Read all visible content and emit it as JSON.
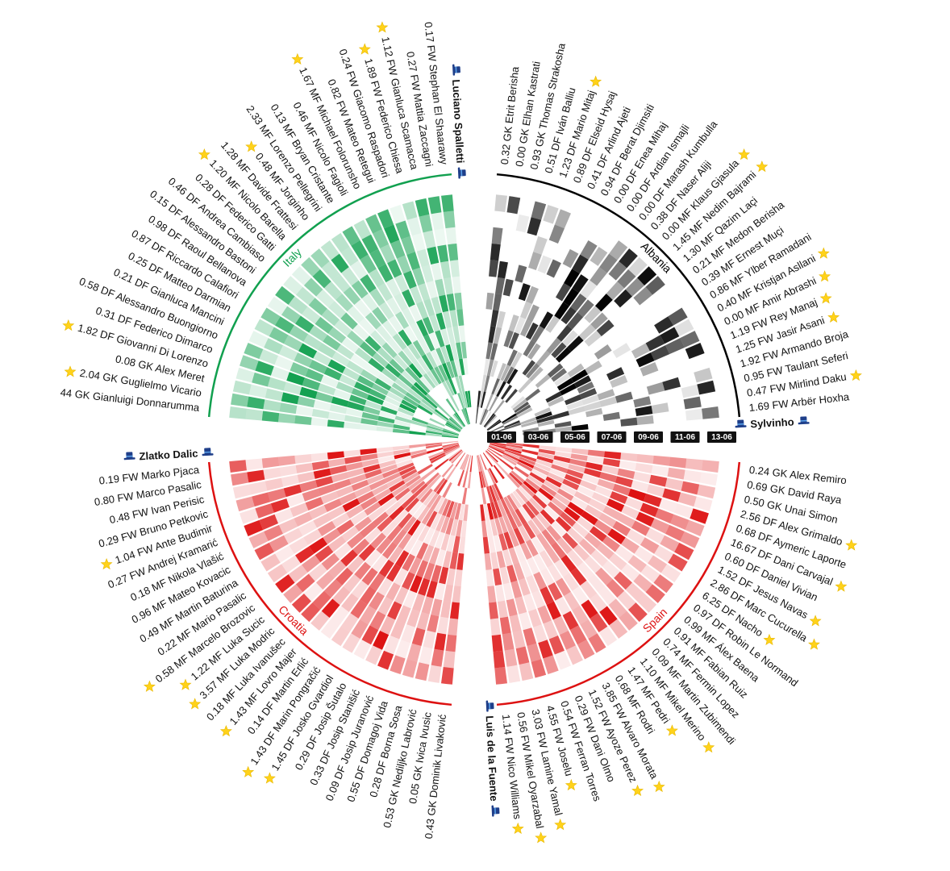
{
  "chart_data": {
    "type": "heatmap",
    "radial": true,
    "dates": [
      "01-06",
      "03-06",
      "05-06",
      "07-06",
      "09-06",
      "11-06",
      "13-06"
    ],
    "teams": [
      {
        "name": "Albania",
        "coach": "Sylvinho",
        "color": "#000000",
        "players": [
          {
            "label": "0.32 GK Etrit Berisha",
            "star": false
          },
          {
            "label": "0.00 GK Elhan Kastrati",
            "star": false
          },
          {
            "label": "0.93 GK Thomas Strakosha",
            "star": false
          },
          {
            "label": "0.51 DF Iván Balliu",
            "star": false
          },
          {
            "label": "1.23 DF Mario Mitaj",
            "star": true
          },
          {
            "label": "0.89 DF Elseid Hysaj",
            "star": false
          },
          {
            "label": "0.41 DF Arlind Ajeti",
            "star": false
          },
          {
            "label": "0.94 DF Berat Djimsiti",
            "star": false
          },
          {
            "label": "0.00 DF Enea Mihaj",
            "star": false
          },
          {
            "label": "0.00 DF Ardian Ismajli",
            "star": false
          },
          {
            "label": "0.00 DF Marash Kumbulla",
            "star": false
          },
          {
            "label": "0.38 DF Naser Aliji",
            "star": false
          },
          {
            "label": "0.00 MF Klaus Gjasula",
            "star": true
          },
          {
            "label": "1.45 MF Nedim Bajrami",
            "star": true
          },
          {
            "label": "1.30 MF Qazim Laçi",
            "star": false
          },
          {
            "label": "0.21 MF Medon Berisha",
            "star": false
          },
          {
            "label": "0.39 MF Ernest Muçi",
            "star": false
          },
          {
            "label": "0.86 MF Ylber Ramadani",
            "star": false
          },
          {
            "label": "0.40 MF Kristjan Asllani",
            "star": true
          },
          {
            "label": "0.00 MF Amir Abrashi",
            "star": true
          },
          {
            "label": "1.19 FW Rey Manaj",
            "star": true
          },
          {
            "label": "1.25 FW Jasir Asani",
            "star": true
          },
          {
            "label": "1.92 FW Armando Broja",
            "star": false
          },
          {
            "label": "0.95 FW Taulant Seferi",
            "star": false
          },
          {
            "label": "0.47 FW Mirlind Daku",
            "star": true
          },
          {
            "label": "1.69 FW Arbër Hoxha",
            "star": false
          }
        ]
      },
      {
        "name": "Spain",
        "coach": "Luis de la Fuente",
        "color": "#dd1111",
        "players": [
          {
            "label": "0.24 GK Alex Remiro",
            "star": false
          },
          {
            "label": "0.69 GK David Raya",
            "star": false
          },
          {
            "label": "0.50 GK Unai Simon",
            "star": false
          },
          {
            "label": "2.56 DF Alex Grimaldo",
            "star": true
          },
          {
            "label": "0.68 DF Aymeric Laporte",
            "star": false
          },
          {
            "label": "16.67 DF Dani Carvajal",
            "star": true
          },
          {
            "label": "0.60 DF Daniel Vivian",
            "star": false
          },
          {
            "label": "1.52 DF Jesus Navas",
            "star": true
          },
          {
            "label": "2.86 DF Marc Cucurella",
            "star": true
          },
          {
            "label": "6.25 DF Nacho",
            "star": true
          },
          {
            "label": "0.97 DF Robin Le Normand",
            "star": false
          },
          {
            "label": "0.99 MF Álex Baena",
            "star": false
          },
          {
            "label": "0.91 MF Fabian Ruiz",
            "star": false
          },
          {
            "label": "0.74 MF Fermin Lopez",
            "star": false
          },
          {
            "label": "0.09 MF Martin Zubimendi",
            "star": false
          },
          {
            "label": "1.10 MF Mikel Merino",
            "star": true
          },
          {
            "label": "1.47 MF Pedri",
            "star": true
          },
          {
            "label": "0.68 MF Rodri",
            "star": false
          },
          {
            "label": "3.85 FW Alvaro Morata",
            "star": true
          },
          {
            "label": "1.52 FW Ayoze Perez",
            "star": true
          },
          {
            "label": "0.29 FW Dani Olmo",
            "star": false
          },
          {
            "label": "0.54 FW Ferran Torres",
            "star": false
          },
          {
            "label": "4.55 FW Joselu",
            "star": true
          },
          {
            "label": "3.03 FW Lamine Yamal",
            "star": true
          },
          {
            "label": "0.56 FW Mikel Oyarzabal",
            "star": true
          },
          {
            "label": "1.14 FW Nico Williams",
            "star": true
          }
        ]
      },
      {
        "name": "Croatia",
        "coach": "Zlatko Dalic",
        "color": "#dd1111",
        "players": [
          {
            "label": "0.43 GK Dominik Livaković",
            "star": false
          },
          {
            "label": "0.05 GK Ivica Ivusic",
            "star": false
          },
          {
            "label": "0.53 GK Nediljko Labrović",
            "star": false
          },
          {
            "label": "0.28 DF Borna Sosa",
            "star": false
          },
          {
            "label": "0.55 DF Domagoj Vida",
            "star": false
          },
          {
            "label": "0.09 DF Josip Juranović",
            "star": false
          },
          {
            "label": "0.33 DF Josip Stanišić",
            "star": false
          },
          {
            "label": "0.29 DF Josip Šutalo",
            "star": false
          },
          {
            "label": "1.45 DF Josko Gvardiol",
            "star": true
          },
          {
            "label": "1.43 DF Marin Pongračić",
            "star": true
          },
          {
            "label": "0.14 DF Martin Erlić",
            "star": false
          },
          {
            "label": "1.43 MF Lovro Majer",
            "star": true
          },
          {
            "label": "0.18 MF Luka Ivanušec",
            "star": false
          },
          {
            "label": "3.57 MF Luka Modric",
            "star": true
          },
          {
            "label": "1.22 MF Luka Sucic",
            "star": true
          },
          {
            "label": "0.58 MF Marcelo Brozovic",
            "star": true
          },
          {
            "label": "0.22 MF Mario Pasalic",
            "star": false
          },
          {
            "label": "0.49 MF Martin Baturina",
            "star": false
          },
          {
            "label": "0.96 MF Mateo Kovacic",
            "star": false
          },
          {
            "label": "0.18 MF Nikola Vlašić",
            "star": false
          },
          {
            "label": "0.27 FW Andrej Kramarić",
            "star": false
          },
          {
            "label": "1.04 FW Ante Budimir",
            "star": true
          },
          {
            "label": "0.29 FW Bruno Petkovic",
            "star": false
          },
          {
            "label": "0.48 FW Ivan Perisic",
            "star": false
          },
          {
            "label": "0.80 FW Marco Pasalic",
            "star": false
          },
          {
            "label": "0.19 FW Marko Pjaca",
            "star": false
          }
        ]
      },
      {
        "name": "Italy",
        "coach": "Luciano Spalletti",
        "color": "#11a04f",
        "players": [
          {
            "label": "44 GK Gianluigi Donnarumma",
            "star": false
          },
          {
            "label": "2.04 GK Guglielmo Vicario",
            "star": true
          },
          {
            "label": "0.08 GK Alex Meret",
            "star": false
          },
          {
            "label": "1.82 DF Giovanni Di Lorenzo",
            "star": true
          },
          {
            "label": "0.31 DF Federico Dimarco",
            "star": false
          },
          {
            "label": "0.58 DF Alessandro Buongiorno",
            "star": false
          },
          {
            "label": "0.21 DF Gianluca Mancini",
            "star": false
          },
          {
            "label": "0.25 DF Matteo Darmian",
            "star": false
          },
          {
            "label": "0.87 DF Riccardo Calafiori",
            "star": false
          },
          {
            "label": "0.98 DF Raoul Bellanova",
            "star": false
          },
          {
            "label": "0.15 DF Alessandro Bastoni",
            "star": false
          },
          {
            "label": "0.46 DF Andrea Cambiaso",
            "star": false
          },
          {
            "label": "0.28 DF Federico Gatti",
            "star": false
          },
          {
            "label": "1.20 MF Nicolo Barella",
            "star": true
          },
          {
            "label": "1.28 MF Davide Frattesi",
            "star": false
          },
          {
            "label": "0.48 MF Jorginho",
            "star": true
          },
          {
            "label": "2.33 MF Lorenzo Pellegrini",
            "star": false
          },
          {
            "label": "0.13 MF Bryan Cristante",
            "star": false
          },
          {
            "label": "0.46 MF Nicolo Fagioli",
            "star": false
          },
          {
            "label": "1.67 MF Michael Folorunsho",
            "star": true
          },
          {
            "label": "0.82 FW Mateo Retegui",
            "star": false
          },
          {
            "label": "0.24 FW Giacomo Raspadori",
            "star": false
          },
          {
            "label": "1.89 FW Federico Chiesa",
            "star": true
          },
          {
            "label": "1.12 FW Gianluca Scamacca",
            "star": true
          },
          {
            "label": "0.27 FW Mattia Zaccagni",
            "star": false
          },
          {
            "label": "0.17 FW Stephan El Shaarawy",
            "star": false
          }
        ]
      }
    ]
  }
}
